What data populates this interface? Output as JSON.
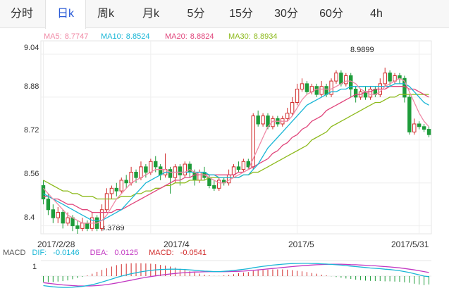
{
  "tabs": [
    {
      "label": "分时",
      "active": false
    },
    {
      "label": "日k",
      "active": true
    },
    {
      "label": "周k",
      "active": false
    },
    {
      "label": "月k",
      "active": false
    },
    {
      "label": "5分",
      "active": false
    },
    {
      "label": "15分",
      "active": false
    },
    {
      "label": "30分",
      "active": false
    },
    {
      "label": "60分",
      "active": false
    },
    {
      "label": "4h",
      "active": false
    }
  ],
  "ma_legend": [
    {
      "label": "MA5:",
      "value": "8.7747",
      "color": "#f08aa6"
    },
    {
      "label": "MA10:",
      "value": "8.8524",
      "color": "#19b6d6"
    },
    {
      "label": "MA20:",
      "value": "8.8824",
      "color": "#e0457b"
    },
    {
      "label": "MA30:",
      "value": "8.8934",
      "color": "#8dba1c"
    }
  ],
  "y_ticks": [
    "9.04",
    "8.88",
    "8.72",
    "8.56",
    "8.4"
  ],
  "x_ticks": [
    "2017/2/28",
    "2017/4",
    "2017/5",
    "2017/5/31"
  ],
  "annotations": {
    "high": "8.9899",
    "low": "8.3789"
  },
  "macd_legend": {
    "title": "MACD",
    "dif_label": "DIF:",
    "dif_value": "-0.0146",
    "dif_color": "#19b6d6",
    "dea_label": "DEA:",
    "dea_value": "0.0125",
    "dea_color": "#c237c2",
    "macd_label": "MACD:",
    "macd_value": "-0.0541",
    "macd_color": "#d12b2b"
  },
  "macd_tick": "1",
  "chart_data": {
    "type": "candlestick",
    "ylim": [
      8.37,
      9.09
    ],
    "x_labels": [
      "2017/2/28",
      "2017/4",
      "2017/5",
      "2017/5/31"
    ],
    "up_color": "#d12b2b",
    "down_color": "#1e9c3a",
    "candles": [
      [
        8.55,
        8.5,
        8.57,
        8.48
      ],
      [
        8.5,
        8.46,
        8.52,
        8.44
      ],
      [
        8.46,
        8.43,
        8.48,
        8.41
      ],
      [
        8.43,
        8.45,
        8.47,
        8.41
      ],
      [
        8.45,
        8.41,
        8.46,
        8.39
      ],
      [
        8.41,
        8.43,
        8.45,
        8.4
      ],
      [
        8.43,
        8.4,
        8.44,
        8.38
      ],
      [
        8.4,
        8.39,
        8.42,
        8.37
      ],
      [
        8.39,
        8.41,
        8.43,
        8.38
      ],
      [
        8.41,
        8.39,
        8.42,
        8.38
      ],
      [
        8.39,
        8.43,
        8.45,
        8.38
      ],
      [
        8.43,
        8.39,
        8.44,
        8.38
      ],
      [
        8.39,
        8.46,
        8.48,
        8.38
      ],
      [
        8.46,
        8.52,
        8.54,
        8.45
      ],
      [
        8.52,
        8.54,
        8.55,
        8.5
      ],
      [
        8.54,
        8.53,
        8.56,
        8.51
      ],
      [
        8.53,
        8.57,
        8.58,
        8.52
      ],
      [
        8.57,
        8.56,
        8.59,
        8.54
      ],
      [
        8.56,
        8.6,
        8.62,
        8.55
      ],
      [
        8.6,
        8.58,
        8.61,
        8.56
      ],
      [
        8.58,
        8.62,
        8.64,
        8.57
      ],
      [
        8.62,
        8.6,
        8.63,
        8.58
      ],
      [
        8.6,
        8.64,
        8.65,
        8.59
      ],
      [
        8.64,
        8.62,
        8.66,
        8.6
      ],
      [
        8.62,
        8.59,
        8.63,
        8.57
      ],
      [
        8.59,
        8.61,
        8.67,
        8.58
      ],
      [
        8.61,
        8.58,
        8.62,
        8.52
      ],
      [
        8.58,
        8.62,
        8.63,
        8.56
      ],
      [
        8.62,
        8.59,
        8.63,
        8.55
      ],
      [
        8.59,
        8.63,
        8.64,
        8.58
      ],
      [
        8.63,
        8.6,
        8.64,
        8.58
      ],
      [
        8.6,
        8.57,
        8.61,
        8.55
      ],
      [
        8.57,
        8.6,
        8.61,
        8.56
      ],
      [
        8.6,
        8.58,
        8.62,
        8.57
      ],
      [
        8.58,
        8.55,
        8.59,
        8.54
      ],
      [
        8.55,
        8.54,
        8.57,
        8.53
      ],
      [
        8.54,
        8.57,
        8.58,
        8.53
      ],
      [
        8.57,
        8.56,
        8.58,
        8.55
      ],
      [
        8.56,
        8.59,
        8.61,
        8.55
      ],
      [
        8.59,
        8.62,
        8.63,
        8.58
      ],
      [
        8.62,
        8.61,
        8.64,
        8.6
      ],
      [
        8.61,
        8.64,
        8.65,
        8.6
      ],
      [
        8.64,
        8.62,
        8.65,
        8.61
      ],
      [
        8.62,
        8.81,
        8.82,
        8.61
      ],
      [
        8.81,
        8.78,
        8.83,
        8.77
      ],
      [
        8.78,
        8.81,
        8.82,
        8.77
      ],
      [
        8.81,
        8.77,
        8.82,
        8.76
      ],
      [
        8.77,
        8.8,
        8.81,
        8.76
      ],
      [
        8.8,
        8.78,
        8.81,
        8.77
      ],
      [
        8.78,
        8.8,
        8.81,
        8.77
      ],
      [
        8.8,
        8.82,
        8.84,
        8.79
      ],
      [
        8.82,
        8.86,
        8.88,
        8.81
      ],
      [
        8.86,
        8.91,
        8.93,
        8.85
      ],
      [
        8.91,
        8.93,
        8.95,
        8.9
      ],
      [
        8.93,
        8.9,
        8.94,
        8.89
      ],
      [
        8.9,
        8.92,
        8.93,
        8.89
      ],
      [
        8.92,
        8.89,
        8.93,
        8.88
      ],
      [
        8.89,
        8.92,
        8.94,
        8.88
      ],
      [
        8.92,
        8.89,
        8.93,
        8.88
      ],
      [
        8.89,
        8.94,
        8.95,
        8.88
      ],
      [
        8.94,
        8.97,
        8.98,
        8.93
      ],
      [
        8.97,
        8.93,
        8.98,
        8.92
      ],
      [
        8.93,
        8.96,
        8.97,
        8.92
      ],
      [
        8.96,
        8.91,
        8.97,
        8.88
      ],
      [
        8.91,
        8.88,
        8.92,
        8.86
      ],
      [
        8.88,
        8.9,
        8.91,
        8.87
      ],
      [
        8.9,
        8.88,
        8.92,
        8.87
      ],
      [
        8.88,
        8.91,
        8.92,
        8.87
      ],
      [
        8.91,
        8.89,
        8.92,
        8.88
      ],
      [
        8.89,
        8.93,
        8.95,
        8.88
      ],
      [
        8.93,
        8.97,
        8.99,
        8.92
      ],
      [
        8.97,
        8.94,
        8.98,
        8.92
      ],
      [
        8.94,
        8.96,
        8.97,
        8.93
      ],
      [
        8.96,
        8.95,
        8.97,
        8.93
      ],
      [
        8.95,
        8.88,
        8.96,
        8.86
      ],
      [
        8.88,
        8.75,
        8.89,
        8.74
      ],
      [
        8.75,
        8.78,
        8.8,
        8.74
      ],
      [
        8.78,
        8.77,
        8.79,
        8.76
      ],
      [
        8.77,
        8.76,
        8.78,
        8.75
      ],
      [
        8.76,
        8.74,
        8.77,
        8.73
      ]
    ],
    "ma5": [
      8.54,
      8.52,
      8.5,
      8.48,
      8.46,
      8.44,
      8.43,
      8.42,
      8.41,
      8.41,
      8.41,
      8.41,
      8.42,
      8.44,
      8.47,
      8.5,
      8.52,
      8.54,
      8.56,
      8.57,
      8.58,
      8.59,
      8.6,
      8.61,
      8.61,
      8.61,
      8.6,
      8.6,
      8.6,
      8.6,
      8.61,
      8.6,
      8.59,
      8.59,
      8.58,
      8.57,
      8.56,
      8.56,
      8.57,
      8.58,
      8.59,
      8.6,
      8.61,
      8.65,
      8.69,
      8.73,
      8.77,
      8.79,
      8.79,
      8.79,
      8.79,
      8.81,
      8.84,
      8.87,
      8.89,
      8.9,
      8.91,
      8.91,
      8.91,
      8.91,
      8.92,
      8.93,
      8.94,
      8.94,
      8.93,
      8.91,
      8.9,
      8.89,
      8.89,
      8.9,
      8.92,
      8.93,
      8.94,
      8.95,
      8.94,
      8.9,
      8.86,
      8.82,
      8.79,
      8.77
    ],
    "ma10": [
      8.52,
      8.51,
      8.5,
      8.49,
      8.48,
      8.47,
      8.46,
      8.45,
      8.44,
      8.43,
      8.42,
      8.42,
      8.42,
      8.43,
      8.44,
      8.45,
      8.46,
      8.48,
      8.5,
      8.52,
      8.54,
      8.56,
      8.57,
      8.58,
      8.59,
      8.6,
      8.6,
      8.6,
      8.6,
      8.6,
      8.6,
      8.6,
      8.6,
      8.6,
      8.59,
      8.59,
      8.58,
      8.58,
      8.58,
      8.58,
      8.58,
      8.59,
      8.59,
      8.61,
      8.63,
      8.66,
      8.69,
      8.71,
      8.73,
      8.75,
      8.77,
      8.79,
      8.81,
      8.83,
      8.85,
      8.86,
      8.87,
      8.88,
      8.89,
      8.9,
      8.9,
      8.91,
      8.91,
      8.92,
      8.92,
      8.92,
      8.92,
      8.92,
      8.92,
      8.92,
      8.92,
      8.92,
      8.93,
      8.93,
      8.93,
      8.92,
      8.9,
      8.88,
      8.86,
      8.85
    ],
    "ma20": [
      8.51,
      8.51,
      8.5,
      8.5,
      8.49,
      8.48,
      8.48,
      8.47,
      8.46,
      8.46,
      8.45,
      8.45,
      8.45,
      8.45,
      8.45,
      8.46,
      8.46,
      8.47,
      8.48,
      8.49,
      8.5,
      8.51,
      8.52,
      8.53,
      8.54,
      8.55,
      8.56,
      8.57,
      8.57,
      8.58,
      8.58,
      8.59,
      8.59,
      8.59,
      8.59,
      8.59,
      8.59,
      8.59,
      8.59,
      8.59,
      8.6,
      8.6,
      8.61,
      8.62,
      8.63,
      8.64,
      8.65,
      8.67,
      8.68,
      8.7,
      8.71,
      8.73,
      8.74,
      8.76,
      8.77,
      8.79,
      8.8,
      8.81,
      8.83,
      8.84,
      8.85,
      8.86,
      8.87,
      8.88,
      8.89,
      8.89,
      8.9,
      8.9,
      8.91,
      8.91,
      8.91,
      8.92,
      8.92,
      8.92,
      8.92,
      8.91,
      8.91,
      8.9,
      8.89,
      8.88
    ],
    "ma30": [
      8.57,
      8.56,
      8.55,
      8.54,
      8.53,
      8.53,
      8.52,
      8.52,
      8.51,
      8.51,
      8.51,
      8.5,
      8.5,
      8.5,
      8.5,
      8.5,
      8.51,
      8.51,
      8.51,
      8.52,
      8.52,
      8.53,
      8.53,
      8.54,
      8.54,
      8.55,
      8.55,
      8.56,
      8.56,
      8.56,
      8.57,
      8.57,
      8.57,
      8.57,
      8.58,
      8.58,
      8.58,
      8.58,
      8.58,
      8.58,
      8.58,
      8.59,
      8.59,
      8.6,
      8.6,
      8.61,
      8.62,
      8.63,
      8.64,
      8.65,
      8.66,
      8.67,
      8.68,
      8.69,
      8.7,
      8.72,
      8.73,
      8.74,
      8.75,
      8.77,
      8.78,
      8.79,
      8.8,
      8.81,
      8.82,
      8.83,
      8.84,
      8.85,
      8.86,
      8.86,
      8.87,
      8.88,
      8.88,
      8.89,
      8.89,
      8.89,
      8.89,
      8.89,
      8.89,
      8.89
    ],
    "macd": {
      "ylim": [
        -1.3,
        1.3
      ],
      "dif": [
        -0.8,
        -0.85,
        -0.9,
        -0.93,
        -0.95,
        -0.95,
        -0.93,
        -0.9,
        -0.86,
        -0.8,
        -0.72,
        -0.62,
        -0.5,
        -0.38,
        -0.25,
        -0.12,
        0.0,
        0.1,
        0.2,
        0.28,
        0.36,
        0.42,
        0.48,
        0.52,
        0.55,
        0.57,
        0.58,
        0.58,
        0.57,
        0.55,
        0.52,
        0.49,
        0.45,
        0.42,
        0.4,
        0.38,
        0.38,
        0.4,
        0.43,
        0.47,
        0.52,
        0.57,
        0.62,
        0.7,
        0.76,
        0.82,
        0.87,
        0.92,
        0.96,
        1.0,
        1.03,
        1.05,
        1.06,
        1.07,
        1.07,
        1.06,
        1.05,
        1.03,
        1.01,
        0.98,
        0.95,
        0.92,
        0.88,
        0.84,
        0.8,
        0.76,
        0.72,
        0.68,
        0.65,
        0.62,
        0.58,
        0.55,
        0.5,
        0.45,
        0.38,
        0.3,
        0.2,
        0.1,
        0.0,
        -0.05
      ],
      "dea": [
        -0.55,
        -0.6,
        -0.65,
        -0.7,
        -0.74,
        -0.77,
        -0.8,
        -0.82,
        -0.83,
        -0.83,
        -0.82,
        -0.8,
        -0.76,
        -0.71,
        -0.65,
        -0.58,
        -0.5,
        -0.42,
        -0.34,
        -0.26,
        -0.18,
        -0.11,
        -0.04,
        0.02,
        0.08,
        0.13,
        0.18,
        0.22,
        0.26,
        0.29,
        0.32,
        0.34,
        0.35,
        0.36,
        0.37,
        0.37,
        0.37,
        0.37,
        0.38,
        0.39,
        0.4,
        0.42,
        0.45,
        0.48,
        0.52,
        0.56,
        0.6,
        0.64,
        0.68,
        0.72,
        0.76,
        0.8,
        0.84,
        0.87,
        0.9,
        0.93,
        0.95,
        0.97,
        0.98,
        0.99,
        0.99,
        0.99,
        0.98,
        0.96,
        0.95,
        0.93,
        0.91,
        0.88,
        0.86,
        0.83,
        0.8,
        0.77,
        0.73,
        0.69,
        0.64,
        0.58,
        0.52,
        0.45,
        0.38,
        0.3
      ]
    }
  }
}
